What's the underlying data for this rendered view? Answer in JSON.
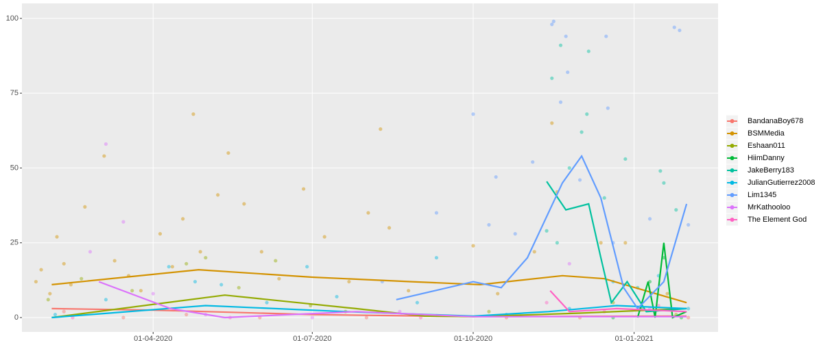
{
  "chart_data": {
    "type": "scatter-smooth",
    "xlim": [
      "2020-01-17",
      "2021-02-18"
    ],
    "xticks": [
      {
        "value": "2020-04-01",
        "label": "01-04-2020"
      },
      {
        "value": "2020-07-01",
        "label": "01-07-2020"
      },
      {
        "value": "2020-10-01",
        "label": "01-10-2020"
      },
      {
        "value": "2021-01-01",
        "label": "01-01-2021"
      }
    ],
    "ylim": [
      -4.8,
      105
    ],
    "yticks": [
      0,
      25,
      50,
      75,
      100
    ],
    "grid": true,
    "legend": "right",
    "series": [
      {
        "name": "BandanaBoy678",
        "color": "#F8766D",
        "x": [
          "2020-02-10",
          "2020-03-15",
          "2020-04-20",
          "2020-06-01",
          "2020-08-01",
          "2020-10-20",
          "2020-12-01",
          "2021-02-01"
        ],
        "values": [
          2,
          0,
          1,
          0,
          0,
          0,
          0,
          0
        ],
        "smooth_x": [
          "2020-02-03",
          "2020-04-01",
          "2020-07-01",
          "2020-10-01",
          "2021-01-31"
        ],
        "smooth_values": [
          3,
          2.5,
          1,
          0.3,
          0.5
        ]
      },
      {
        "name": "BSMMedia",
        "color": "#D39200",
        "x": [
          "2020-01-25",
          "2020-01-28",
          "2020-02-02",
          "2020-02-06",
          "2020-02-10",
          "2020-02-14",
          "2020-02-22",
          "2020-03-04",
          "2020-03-10",
          "2020-03-18",
          "2020-03-25",
          "2020-04-05",
          "2020-04-12",
          "2020-04-18",
          "2020-04-24",
          "2020-04-28",
          "2020-05-08",
          "2020-05-14",
          "2020-05-23",
          "2020-06-02",
          "2020-06-12",
          "2020-06-26",
          "2020-07-08",
          "2020-07-22",
          "2020-08-02",
          "2020-08-09",
          "2020-08-14",
          "2020-08-25",
          "2020-10-01",
          "2020-10-15",
          "2020-11-05",
          "2020-11-15",
          "2020-11-18",
          "2020-12-13",
          "2020-12-27",
          "2021-01-20"
        ],
        "values": [
          12,
          16,
          8,
          27,
          18,
          11,
          37,
          54,
          19,
          14,
          9,
          28,
          17,
          33,
          68,
          22,
          41,
          55,
          38,
          22,
          13,
          43,
          27,
          12,
          35,
          63,
          30,
          9,
          24,
          8,
          22,
          65,
          42,
          25,
          25,
          8
        ],
        "smooth_x": [
          "2020-02-03",
          "2020-04-27",
          "2020-07-01",
          "2020-08-27",
          "2020-10-05",
          "2020-11-21",
          "2020-12-15",
          "2021-01-31"
        ],
        "smooth_values": [
          11,
          16,
          13.5,
          12,
          11,
          14,
          13,
          5
        ]
      },
      {
        "name": "Eshaan011",
        "color": "#93AA00",
        "x": [
          "2020-02-01",
          "2020-02-20",
          "2020-03-20",
          "2020-04-20",
          "2020-05-01",
          "2020-05-20",
          "2020-06-10",
          "2020-06-30",
          "2020-07-20",
          "2020-10-10",
          "2020-12-20",
          "2021-01-25"
        ],
        "values": [
          6,
          13,
          9,
          18,
          20,
          10,
          19,
          4,
          2,
          2,
          5,
          1
        ],
        "smooth_x": [
          "2020-02-03",
          "2020-05-12",
          "2020-07-26",
          "2020-09-03",
          "2020-10-01",
          "2020-12-01",
          "2021-01-31"
        ],
        "smooth_values": [
          0,
          7.5,
          3,
          0.5,
          0.3,
          1.5,
          3
        ]
      },
      {
        "name": "HiimDanny",
        "color": "#00BA38",
        "x": [
          "2020-12-20",
          "2021-01-05",
          "2021-01-10",
          "2021-01-18",
          "2021-01-28"
        ],
        "values": [
          0,
          3,
          12,
          20,
          0
        ],
        "smooth_x": [
          "2021-01-03",
          "2021-01-09",
          "2021-01-13",
          "2021-01-18",
          "2021-01-23",
          "2021-01-31"
        ],
        "smooth_values": [
          0,
          12,
          0,
          25,
          0,
          2
        ]
      },
      {
        "name": "JakeBerry183",
        "color": "#00C19F",
        "x": [
          "2020-11-12",
          "2020-11-15",
          "2020-11-18",
          "2020-11-20",
          "2020-11-25",
          "2020-12-02",
          "2020-12-05",
          "2020-12-06",
          "2020-12-15",
          "2020-12-27",
          "2021-01-03",
          "2021-01-16",
          "2021-01-18",
          "2021-01-25"
        ],
        "values": [
          29,
          80,
          25,
          91,
          50,
          62,
          68,
          89,
          40,
          53,
          10,
          49,
          45,
          36
        ],
        "smooth_x": [
          "2020-11-12",
          "2020-11-23",
          "2020-12-06",
          "2020-12-13",
          "2020-12-19",
          "2020-12-28",
          "2021-01-08",
          "2021-01-31"
        ],
        "smooth_values": [
          45.5,
          36,
          38,
          20,
          5,
          12,
          2,
          3
        ]
      },
      {
        "name": "JulianGutierrez2008",
        "color": "#00B9E3",
        "x": [
          "2020-02-05",
          "2020-03-05",
          "2020-04-10",
          "2020-04-25",
          "2020-05-10",
          "2020-06-05",
          "2020-06-28",
          "2020-07-15",
          "2020-08-30",
          "2020-09-10",
          "2020-10-20",
          "2020-11-25",
          "2020-12-20",
          "2021-01-15",
          "2021-02-01"
        ],
        "values": [
          1,
          6,
          17,
          12,
          11,
          5,
          17,
          7,
          5,
          20,
          1,
          3,
          12,
          14,
          3
        ],
        "smooth_x": [
          "2020-02-03",
          "2020-05-01",
          "2020-07-20",
          "2020-10-01",
          "2020-11-13",
          "2020-12-22",
          "2021-01-31"
        ],
        "smooth_values": [
          0,
          4,
          2,
          0.5,
          2,
          4,
          3
        ]
      },
      {
        "name": "Lim1345",
        "color": "#619CFF",
        "x": [
          "2020-08-10",
          "2020-09-10",
          "2020-10-01",
          "2020-10-10",
          "2020-10-14",
          "2020-10-25",
          "2020-11-04",
          "2020-11-15",
          "2020-11-16",
          "2020-11-20",
          "2020-11-23",
          "2020-11-24",
          "2020-12-01",
          "2020-12-16",
          "2020-12-17",
          "2020-12-20",
          "2021-01-10",
          "2021-01-24",
          "2021-01-27",
          "2021-02-01"
        ],
        "values": [
          12,
          35,
          68,
          31,
          47,
          28,
          52,
          98,
          99,
          72,
          94,
          82,
          46,
          94,
          70,
          25,
          33,
          97,
          96,
          31
        ],
        "smooth_x": [
          "2020-08-18",
          "2020-10-01",
          "2020-10-17",
          "2020-11-01",
          "2020-11-21",
          "2020-12-02",
          "2020-12-13",
          "2020-12-26",
          "2021-01-03",
          "2021-01-18",
          "2021-01-31"
        ],
        "smooth_values": [
          6,
          12,
          10,
          20,
          45,
          54,
          40,
          10,
          3,
          12,
          38
        ]
      },
      {
        "name": "MrKathooloo",
        "color": "#DB72FB",
        "x": [
          "2020-02-25",
          "2020-03-05",
          "2020-03-15",
          "2020-04-01",
          "2020-05-01",
          "2020-07-01",
          "2020-08-20",
          "2020-11-25",
          "2021-01-10"
        ],
        "values": [
          22,
          58,
          32,
          8,
          1,
          0,
          2,
          18,
          3
        ],
        "smooth_x": [
          "2020-03-01",
          "2020-04-11",
          "2020-05-12",
          "2020-07-26",
          "2020-10-01",
          "2021-01-31"
        ],
        "smooth_values": [
          12,
          3,
          0,
          2,
          0.3,
          0.3
        ]
      },
      {
        "name": "The Element God",
        "color": "#FF61C3",
        "x": [
          "2020-02-15",
          "2020-05-15",
          "2020-09-01",
          "2020-11-12",
          "2020-12-15",
          "2021-01-15"
        ],
        "values": [
          0,
          0,
          0,
          5,
          2,
          4
        ],
        "smooth_x": [
          "2020-11-14",
          "2020-11-25",
          "2020-12-22",
          "2021-01-31"
        ],
        "smooth_values": [
          9,
          2,
          3,
          2
        ]
      }
    ]
  }
}
